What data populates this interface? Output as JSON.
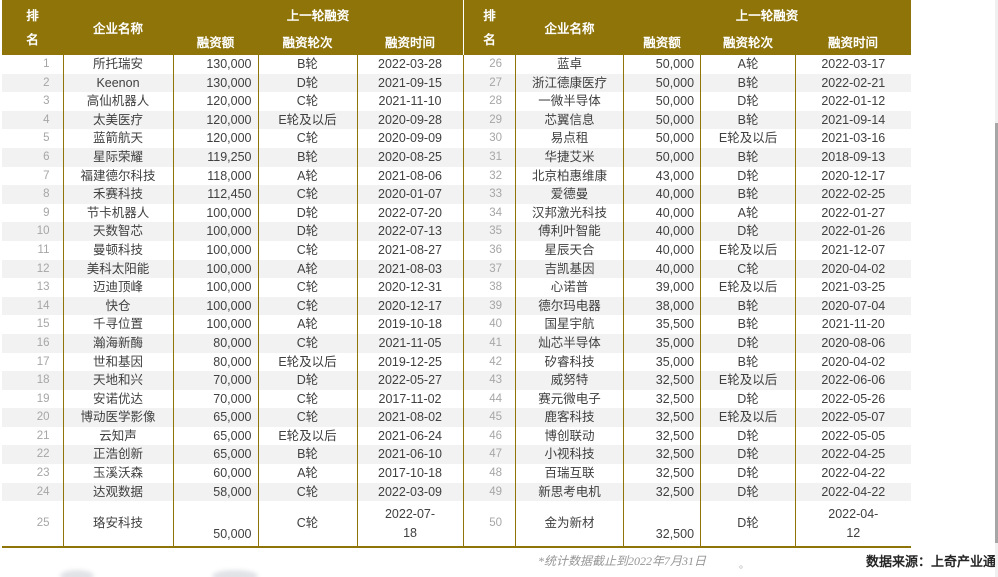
{
  "header": {
    "rank": "排名",
    "company": "企业名称",
    "group": "上一轮融资",
    "amount": "融资额",
    "round": "融资轮次",
    "time": "融资时间"
  },
  "tables": {
    "left": {
      "rows": [
        {
          "rank": "1",
          "name": "所托瑞安",
          "amount": "130,000",
          "round": "B轮",
          "date": "2022-03-28"
        },
        {
          "rank": "2",
          "name": "Keenon",
          "amount": "130,000",
          "round": "D轮",
          "date": "2021-09-15"
        },
        {
          "rank": "3",
          "name": "高仙机器人",
          "amount": "120,000",
          "round": "C轮",
          "date": "2021-11-10"
        },
        {
          "rank": "4",
          "name": "太美医疗",
          "amount": "120,000",
          "round": "E轮及以后",
          "date": "2020-09-28"
        },
        {
          "rank": "5",
          "name": "蓝箭航天",
          "amount": "120,000",
          "round": "C轮",
          "date": "2020-09-09"
        },
        {
          "rank": "6",
          "name": "星际荣耀",
          "amount": "119,250",
          "round": "B轮",
          "date": "2020-08-25"
        },
        {
          "rank": "7",
          "name": "福建德尔科技",
          "amount": "118,000",
          "round": "A轮",
          "date": "2021-08-06"
        },
        {
          "rank": "8",
          "name": "禾赛科技",
          "amount": "112,450",
          "round": "C轮",
          "date": "2020-01-07"
        },
        {
          "rank": "9",
          "name": "节卡机器人",
          "amount": "100,000",
          "round": "D轮",
          "date": "2022-07-20"
        },
        {
          "rank": "10",
          "name": "天数智芯",
          "amount": "100,000",
          "round": "D轮",
          "date": "2022-07-13"
        },
        {
          "rank": "11",
          "name": "曼顿科技",
          "amount": "100,000",
          "round": "C轮",
          "date": "2021-08-27"
        },
        {
          "rank": "12",
          "name": "美科太阳能",
          "amount": "100,000",
          "round": "A轮",
          "date": "2021-08-03"
        },
        {
          "rank": "13",
          "name": "迈迪顶峰",
          "amount": "100,000",
          "round": "C轮",
          "date": "2020-12-31"
        },
        {
          "rank": "14",
          "name": "快仓",
          "amount": "100,000",
          "round": "C轮",
          "date": "2020-12-17"
        },
        {
          "rank": "15",
          "name": "千寻位置",
          "amount": "100,000",
          "round": "A轮",
          "date": "2019-10-18"
        },
        {
          "rank": "16",
          "name": "瀚海新酶",
          "amount": "80,000",
          "round": "C轮",
          "date": "2021-11-05"
        },
        {
          "rank": "17",
          "name": "世和基因",
          "amount": "80,000",
          "round": "E轮及以后",
          "date": "2019-12-25"
        },
        {
          "rank": "18",
          "name": "天地和兴",
          "amount": "70,000",
          "round": "D轮",
          "date": "2022-05-27"
        },
        {
          "rank": "19",
          "name": "安诺优达",
          "amount": "70,000",
          "round": "C轮",
          "date": "2017-11-02"
        },
        {
          "rank": "20",
          "name": "博动医学影像",
          "amount": "65,000",
          "round": "C轮",
          "date": "2021-08-02"
        },
        {
          "rank": "21",
          "name": "云知声",
          "amount": "65,000",
          "round": "E轮及以后",
          "date": "2021-06-24"
        },
        {
          "rank": "22",
          "name": "正浩创新",
          "amount": "65,000",
          "round": "B轮",
          "date": "2021-06-10"
        },
        {
          "rank": "23",
          "name": "玉溪沃森",
          "amount": "60,000",
          "round": "A轮",
          "date": "2017-10-18"
        },
        {
          "rank": "24",
          "name": "达观数据",
          "amount": "58,000",
          "round": "C轮",
          "date": "2022-03-09"
        },
        {
          "rank": "25",
          "name": "珞安科技",
          "amount": "50,000",
          "round": "C轮",
          "date": "2022-07-\n18",
          "tall": true
        }
      ]
    },
    "right": {
      "rows": [
        {
          "rank": "26",
          "name": "蓝卓",
          "amount": "50,000",
          "round": "A轮",
          "date": "2022-03-17"
        },
        {
          "rank": "27",
          "name": "浙江德康医疗",
          "amount": "50,000",
          "round": "B轮",
          "date": "2022-02-21"
        },
        {
          "rank": "28",
          "name": "一微半导体",
          "amount": "50,000",
          "round": "D轮",
          "date": "2022-01-12"
        },
        {
          "rank": "29",
          "name": "芯翼信息",
          "amount": "50,000",
          "round": "B轮",
          "date": "2021-09-14"
        },
        {
          "rank": "30",
          "name": "易点租",
          "amount": "50,000",
          "round": "E轮及以后",
          "date": "2021-03-16"
        },
        {
          "rank": "31",
          "name": "华捷艾米",
          "amount": "50,000",
          "round": "B轮",
          "date": "2018-09-13"
        },
        {
          "rank": "32",
          "name": "北京柏惠维康",
          "amount": "43,000",
          "round": "D轮",
          "date": "2020-12-17"
        },
        {
          "rank": "33",
          "name": "爱德曼",
          "amount": "40,000",
          "round": "B轮",
          "date": "2022-02-25"
        },
        {
          "rank": "34",
          "name": "汉邦激光科技",
          "amount": "40,000",
          "round": "A轮",
          "date": "2022-01-27"
        },
        {
          "rank": "35",
          "name": "傅利叶智能",
          "amount": "40,000",
          "round": "D轮",
          "date": "2022-01-26"
        },
        {
          "rank": "36",
          "name": "星辰天合",
          "amount": "40,000",
          "round": "E轮及以后",
          "date": "2021-12-07"
        },
        {
          "rank": "37",
          "name": "吉凯基因",
          "amount": "40,000",
          "round": "C轮",
          "date": "2020-04-02"
        },
        {
          "rank": "38",
          "name": "心诺普",
          "amount": "39,000",
          "round": "E轮及以后",
          "date": "2021-03-25"
        },
        {
          "rank": "39",
          "name": "德尔玛电器",
          "amount": "38,000",
          "round": "B轮",
          "date": "2020-07-04"
        },
        {
          "rank": "40",
          "name": "国星宇航",
          "amount": "35,500",
          "round": "B轮",
          "date": "2021-11-20"
        },
        {
          "rank": "41",
          "name": "灿芯半导体",
          "amount": "35,000",
          "round": "D轮",
          "date": "2020-08-06"
        },
        {
          "rank": "42",
          "name": "矽睿科技",
          "amount": "35,000",
          "round": "B轮",
          "date": "2020-04-02"
        },
        {
          "rank": "43",
          "name": "威努特",
          "amount": "32,500",
          "round": "E轮及以后",
          "date": "2022-06-06"
        },
        {
          "rank": "44",
          "name": "赛元微电子",
          "amount": "32,500",
          "round": "D轮",
          "date": "2022-05-26"
        },
        {
          "rank": "45",
          "name": "鹿客科技",
          "amount": "32,500",
          "round": "E轮及以后",
          "date": "2022-05-07"
        },
        {
          "rank": "46",
          "name": "博创联动",
          "amount": "32,500",
          "round": "D轮",
          "date": "2022-05-05"
        },
        {
          "rank": "47",
          "name": "小视科技",
          "amount": "32,500",
          "round": "D轮",
          "date": "2022-04-25"
        },
        {
          "rank": "48",
          "name": "百瑞互联",
          "amount": "32,500",
          "round": "D轮",
          "date": "2022-04-22"
        },
        {
          "rank": "49",
          "name": "新思考电机",
          "amount": "32,500",
          "round": "D轮",
          "date": "2022-04-22"
        },
        {
          "rank": "50",
          "name": "金为新材",
          "amount": "32,500",
          "round": "D轮",
          "date": "2022-04-\n12",
          "tall": true
        }
      ]
    }
  },
  "footer": {
    "note": "*统计数据截止到2022年7月31日",
    "note_period": "。",
    "source": "数据来源：上奇产业通"
  },
  "colors": {
    "header_bg": "#8E7409",
    "grid_line": "#8E7409",
    "row_stripe": "#F2F2F2",
    "rank_text": "#A6A6A6",
    "body_text": "#404040",
    "note_text": "#969696",
    "source_text": "#262626",
    "scrollbar_track": "#F0F0F0",
    "scrollbar_thumb": "#A6A6A6"
  }
}
